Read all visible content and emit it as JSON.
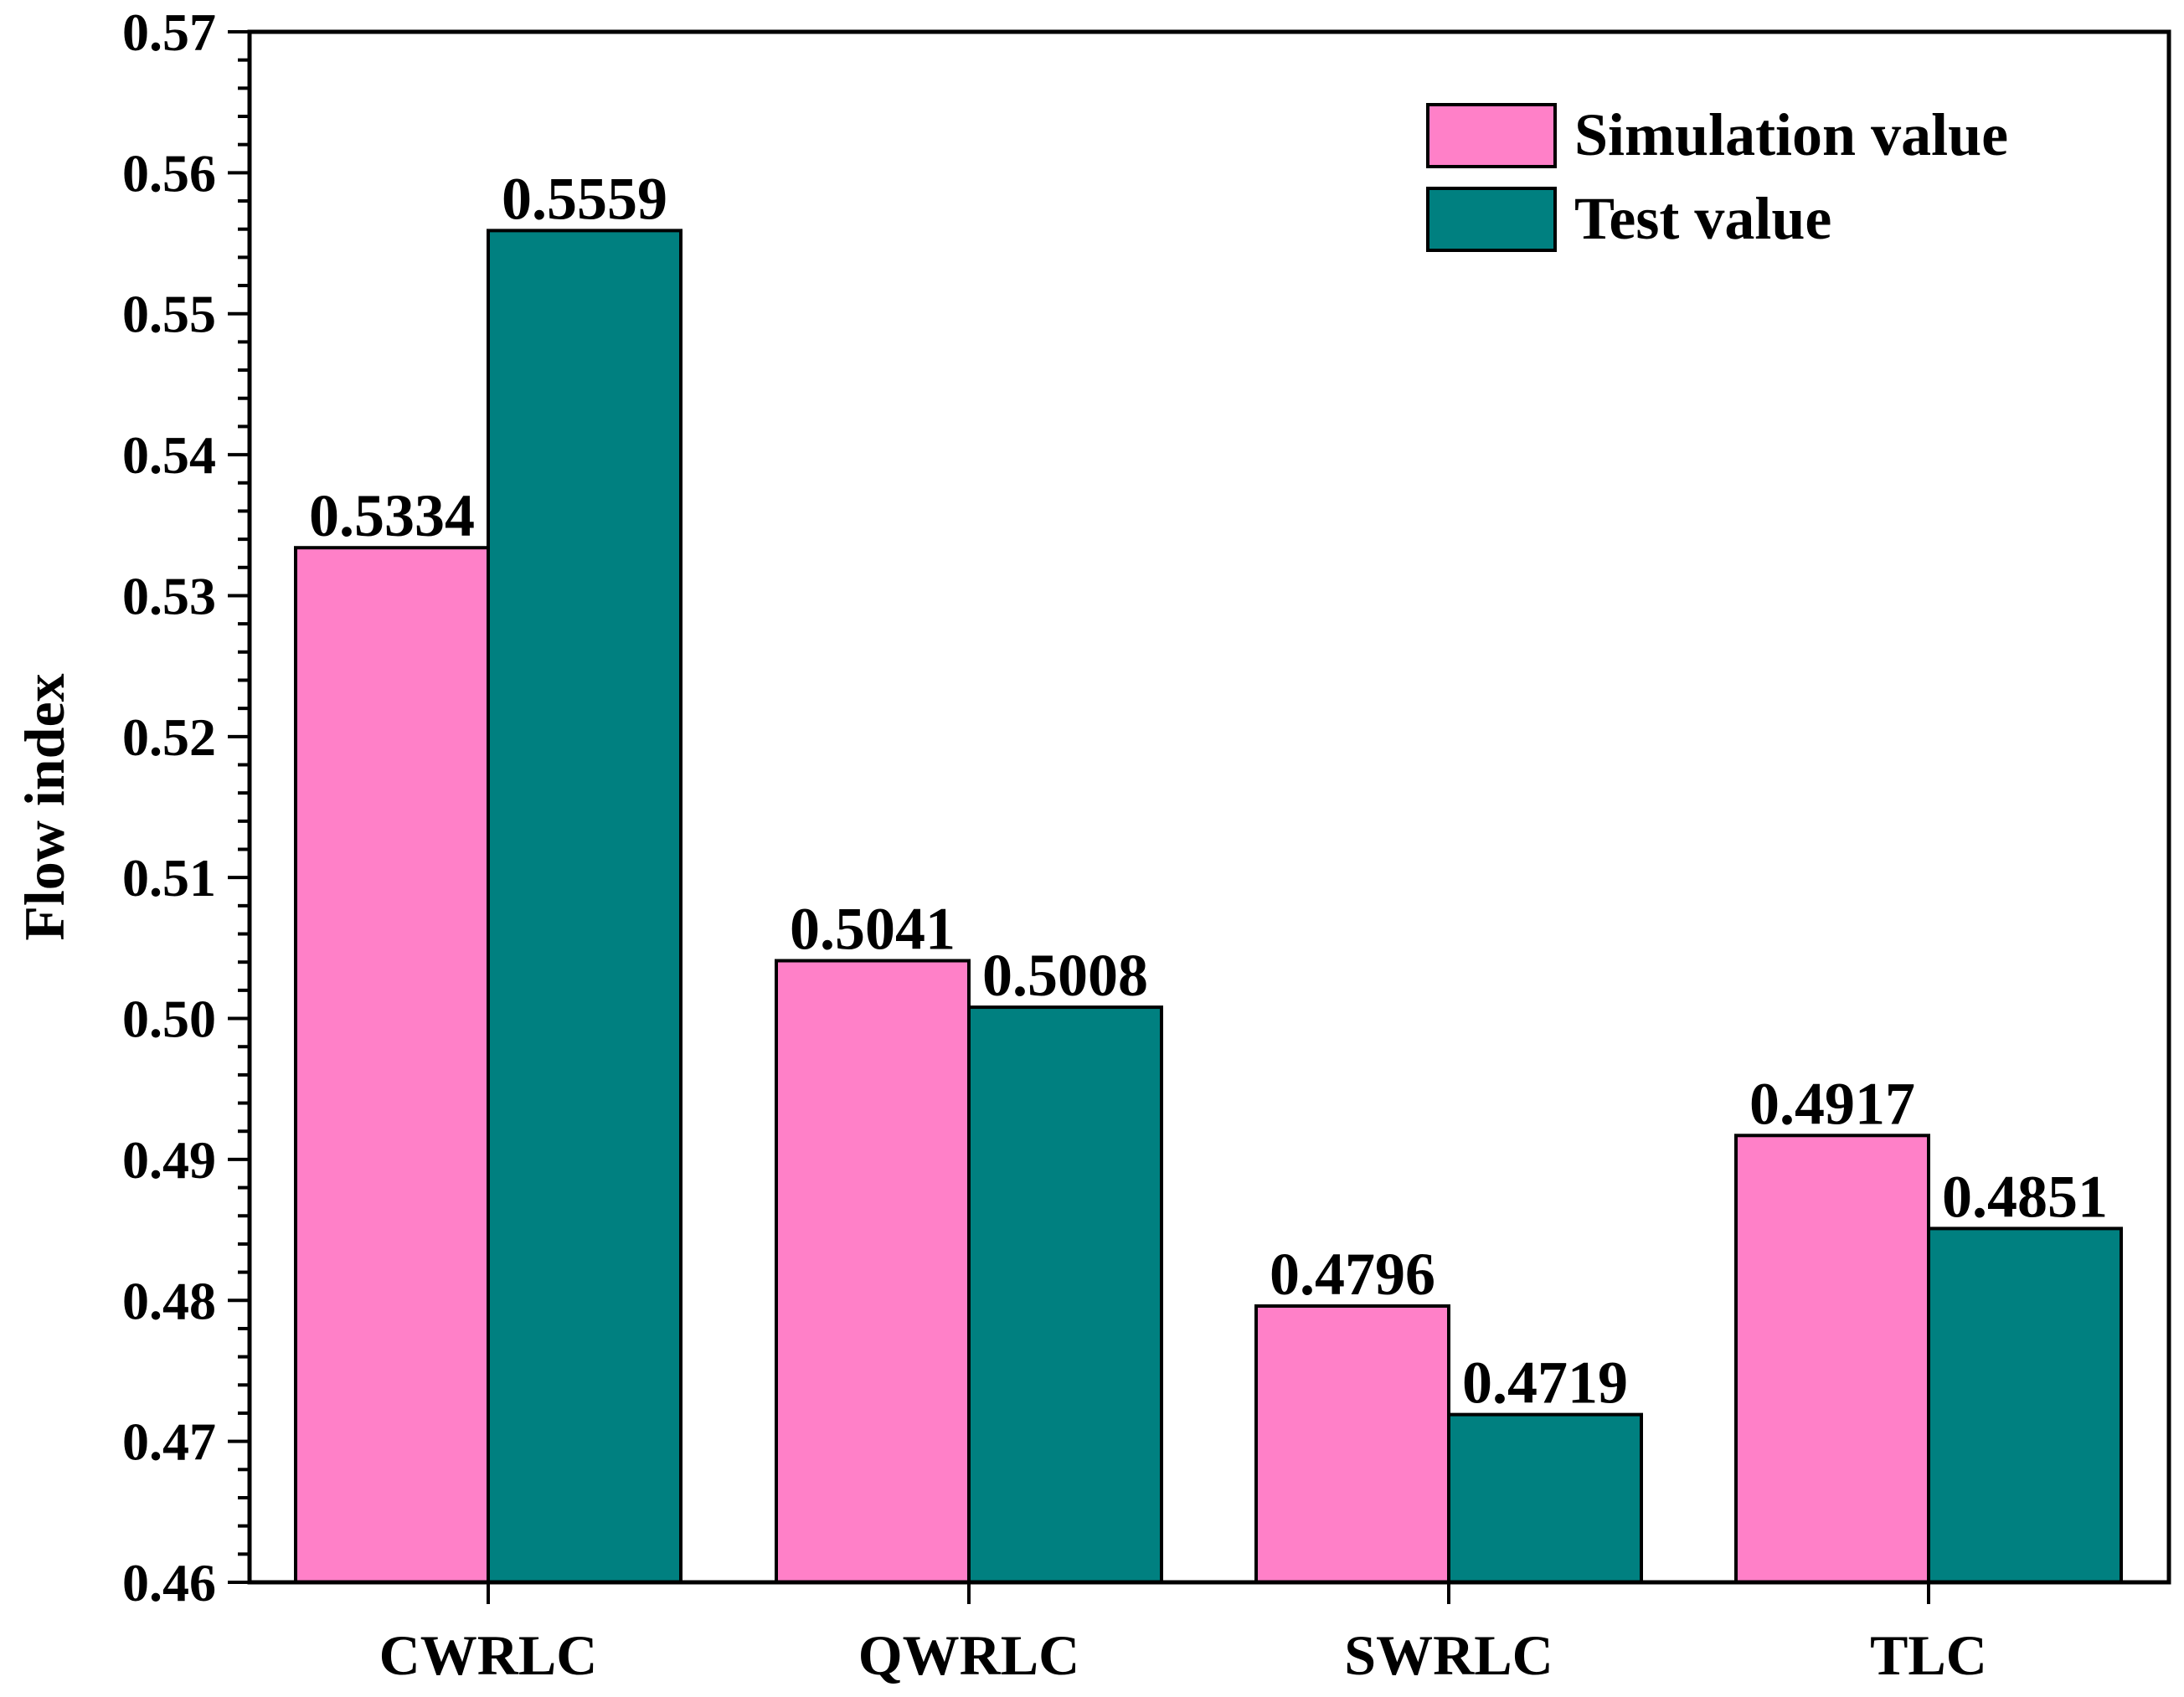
{
  "chart_data": {
    "type": "bar",
    "title": "",
    "xlabel": "",
    "ylabel": "Flow index",
    "categories": [
      "CWRLC",
      "QWRLC",
      "SWRLC",
      "TLC"
    ],
    "series": [
      {
        "name": "Simulation value",
        "color": "#ff80c8",
        "values": [
          0.5334,
          0.5041,
          0.4796,
          0.4917
        ],
        "labels": [
          "0.5334",
          "0.5041",
          "0.4796",
          "0.4917"
        ]
      },
      {
        "name": "Test value",
        "color": "#008080",
        "values": [
          0.5559,
          0.5008,
          0.4719,
          0.4851
        ],
        "labels": [
          "0.5559",
          "0.5008",
          "0.4719",
          "0.4851"
        ]
      }
    ],
    "ylim": [
      0.46,
      0.57
    ],
    "yticks": [
      "0.46",
      "0.47",
      "0.48",
      "0.49",
      "0.50",
      "0.51",
      "0.52",
      "0.53",
      "0.54",
      "0.55",
      "0.56",
      "0.57"
    ],
    "grid": false,
    "legend": {
      "position": "top-right",
      "entries": [
        "Simulation value",
        " Test value"
      ]
    }
  }
}
